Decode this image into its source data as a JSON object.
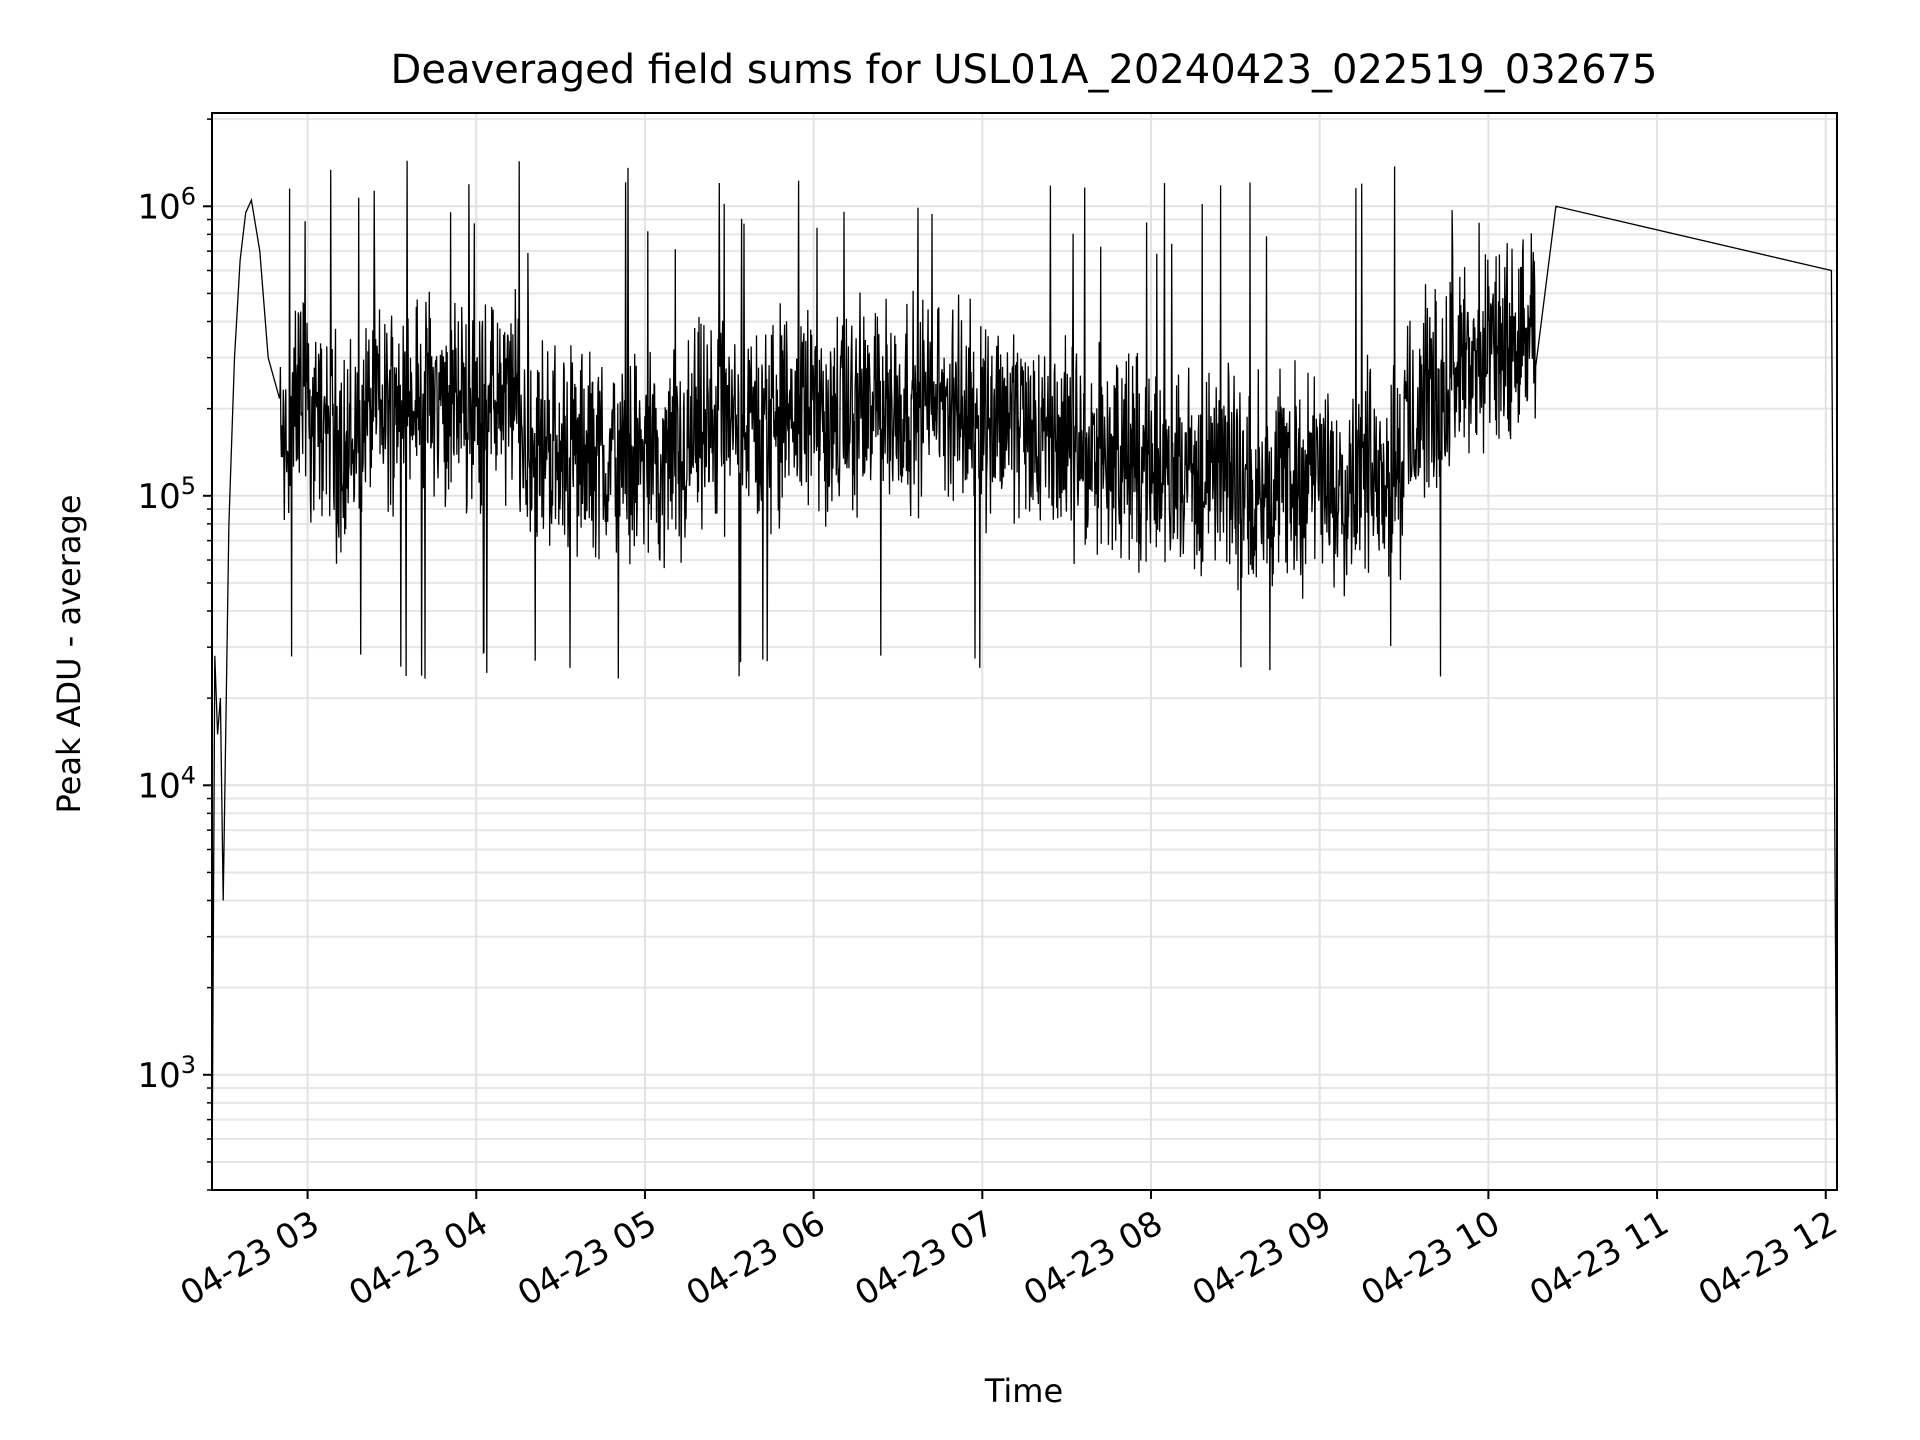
{
  "chart_data": {
    "type": "line",
    "title": "Deaveraged field sums for USL01A_20240423_022519_032675",
    "xlabel": "Time",
    "ylabel": "Peak ADU - average",
    "yscale": "log",
    "xlim": [
      "2024-04-23 02:26",
      "2024-04-23 12:04"
    ],
    "ylim": [
      400,
      2100000
    ],
    "x_ticks": [
      "04-23 03",
      "04-23 04",
      "04-23 05",
      "04-23 06",
      "04-23 07",
      "04-23 08",
      "04-23 09",
      "04-23 10",
      "04-23 11",
      "04-23 12"
    ],
    "y_ticks": [
      {
        "base": "10",
        "exp": "3",
        "value": 1000
      },
      {
        "base": "10",
        "exp": "4",
        "value": 10000
      },
      {
        "base": "10",
        "exp": "5",
        "value": 100000
      },
      {
        "base": "10",
        "exp": "6",
        "value": 1000000
      }
    ],
    "grid": true,
    "grid_minor": true,
    "line_color": "#000000",
    "series": [
      {
        "x": [
          "2024-04-23 02:26",
          "2024-04-23 02:27",
          "2024-04-23 02:28",
          "2024-04-23 02:29",
          "2024-04-23 02:30",
          "2024-04-23 02:32",
          "2024-04-23 02:34",
          "2024-04-23 02:36",
          "2024-04-23 02:38",
          "2024-04-23 02:40",
          "2024-04-23 02:43",
          "2024-04-23 02:46",
          "2024-04-23 02:50",
          "2024-04-23 02:55",
          "2024-04-23 03:00",
          "2024-04-23 03:10",
          "2024-04-23 03:20",
          "2024-04-23 03:30",
          "2024-04-23 03:45",
          "2024-04-23 04:00",
          "2024-04-23 04:15",
          "2024-04-23 04:30",
          "2024-04-23 04:45",
          "2024-04-23 05:00",
          "2024-04-23 05:15",
          "2024-04-23 05:30",
          "2024-04-23 05:45",
          "2024-04-23 06:00",
          "2024-04-23 06:15",
          "2024-04-23 06:30",
          "2024-04-23 06:45",
          "2024-04-23 07:00",
          "2024-04-23 07:15",
          "2024-04-23 07:30",
          "2024-04-23 07:45",
          "2024-04-23 08:00",
          "2024-04-23 08:15",
          "2024-04-23 08:30",
          "2024-04-23 08:45",
          "2024-04-23 09:00",
          "2024-04-23 09:15",
          "2024-04-23 09:30",
          "2024-04-23 09:45",
          "2024-04-23 10:00",
          "2024-04-23 10:12",
          "2024-04-23 10:17",
          "2024-04-23 10:24",
          "2024-04-23 12:02",
          "2024-04-23 12:04"
        ],
        "y": [
          400,
          28000,
          15000,
          20000,
          4000,
          80000,
          300000,
          650000,
          950000,
          1050000,
          700000,
          300000,
          150000,
          400000,
          200000,
          120000,
          250000,
          350000,
          280000,
          300000,
          150000,
          120000,
          110000,
          100000,
          180000,
          200000,
          250000,
          220000,
          280000,
          300000,
          280000,
          250000,
          180000,
          130000,
          110000,
          95000,
          85000,
          75000,
          80000,
          70000,
          100000,
          200000,
          350000,
          450000,
          550000,
          350000,
          1000000,
          600000,
          400
        ]
      }
    ],
    "noise_band": {
      "x_start": "2024-04-23 02:50",
      "x_end": "2024-04-23 10:17",
      "upper_typical": 700000,
      "lower_typical": 35000,
      "max_spike": 1450000,
      "min_spike": 23000
    }
  }
}
